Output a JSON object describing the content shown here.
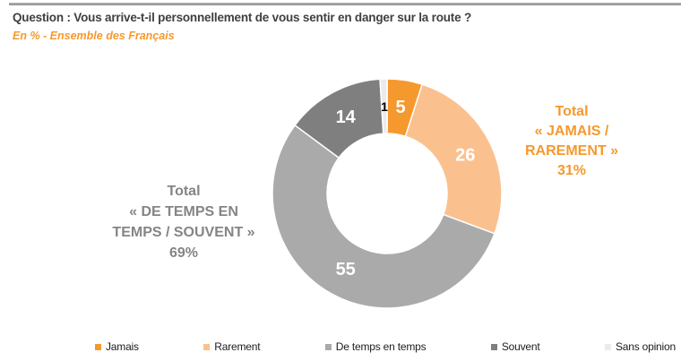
{
  "chart_data": {
    "type": "pie",
    "donut": true,
    "title": "Question : Vous arrive-t-il personnellement de vous sentir en danger sur la route ?",
    "subtitle": "En % - Ensemble des Français",
    "unit": "%",
    "categories": [
      "Jamais",
      "Rarement",
      "De temps en temps",
      "Souvent",
      "Sans opinion"
    ],
    "values": [
      5,
      26,
      55,
      14,
      1
    ],
    "colors": [
      "#F5992E",
      "#FAC18F",
      "#AAAAAA",
      "#7F7F7F",
      "#EBEBEB"
    ],
    "value_label_colors": [
      "#FFFFFF",
      "#FFFFFF",
      "#FFFFFF",
      "#FFFFFF",
      "#000000"
    ],
    "start_angle_deg": 0,
    "direction": "clockwise",
    "legend_position": "bottom",
    "annotations": {
      "left": {
        "text": "Total\n« DE TEMPS EN\nTEMPS / SOUVENT »\n69%",
        "color": "#858585"
      },
      "right": {
        "text": "Total\n« JAMAIS /\nRAREMENT »\n31%",
        "color": "#F5992E"
      }
    }
  }
}
